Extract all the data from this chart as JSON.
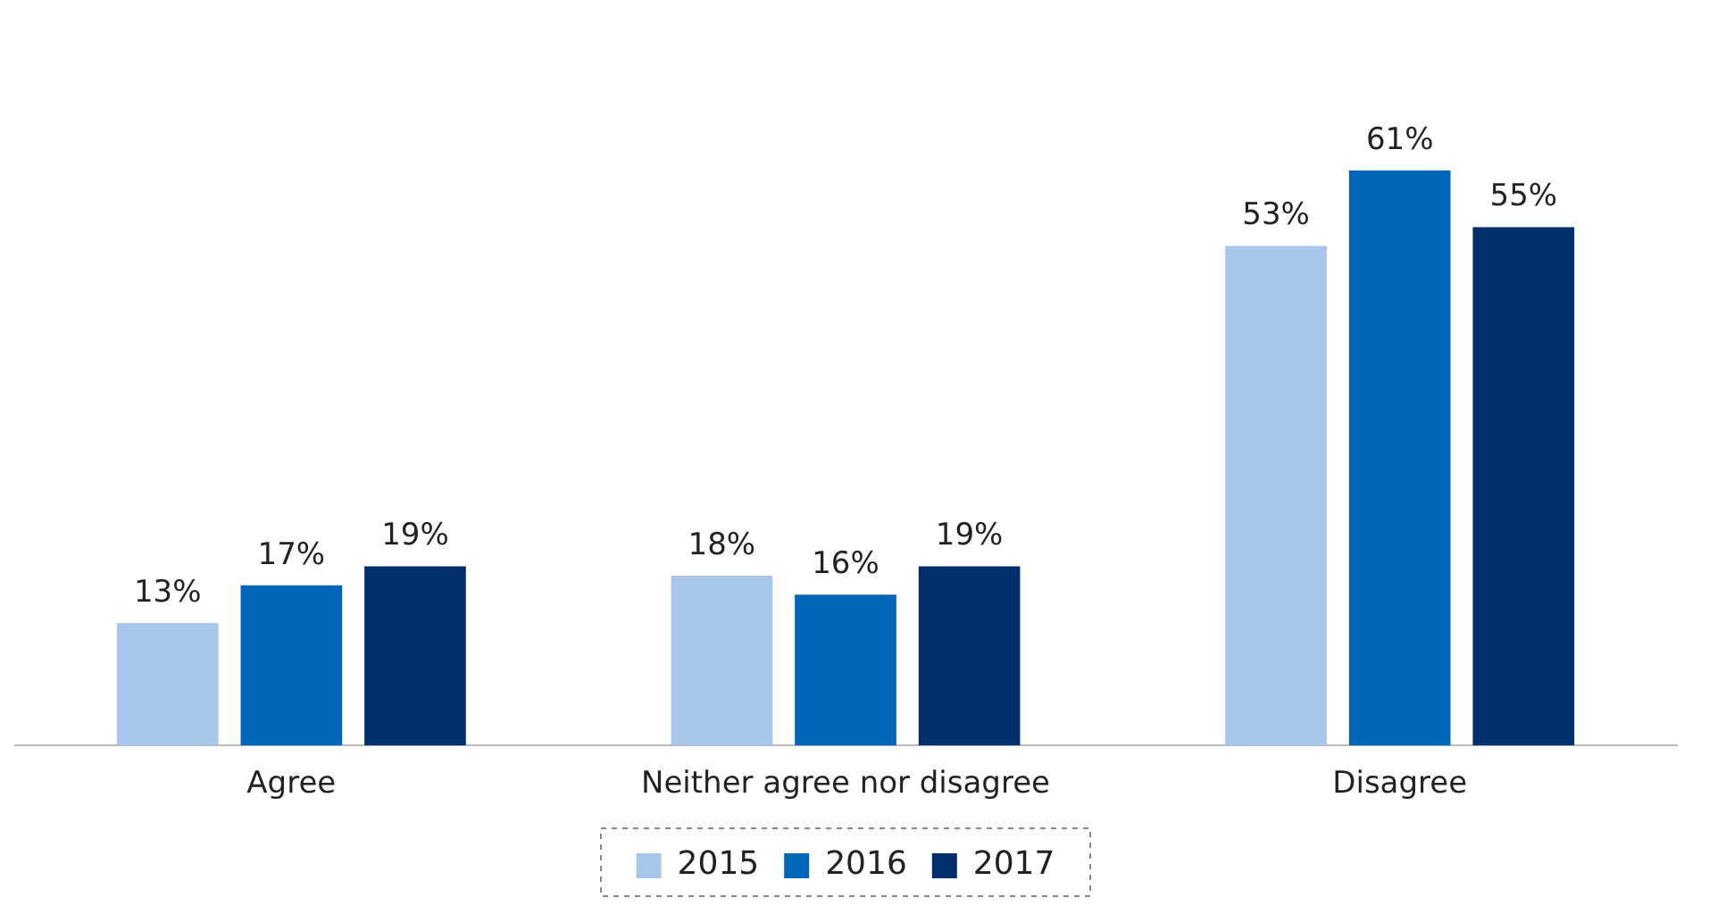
{
  "chart_data": {
    "type": "bar",
    "categories": [
      "Agree",
      "Neither agree nor disagree",
      "Disagree"
    ],
    "series": [
      {
        "name": "2015",
        "color": "#a7c6ea",
        "values": [
          13,
          18,
          53
        ],
        "value_labels": [
          "13%",
          "18%",
          "53%"
        ]
      },
      {
        "name": "2016",
        "color": "#0066b8",
        "values": [
          17,
          16,
          61
        ],
        "value_labels": [
          "17%",
          "16%",
          "61%"
        ]
      },
      {
        "name": "2017",
        "color": "#002f6c",
        "values": [
          19,
          19,
          55
        ],
        "value_labels": [
          "19%",
          "19%",
          "55%"
        ]
      }
    ],
    "legend": "bottom",
    "grid": false,
    "tick_labels": "x"
  }
}
